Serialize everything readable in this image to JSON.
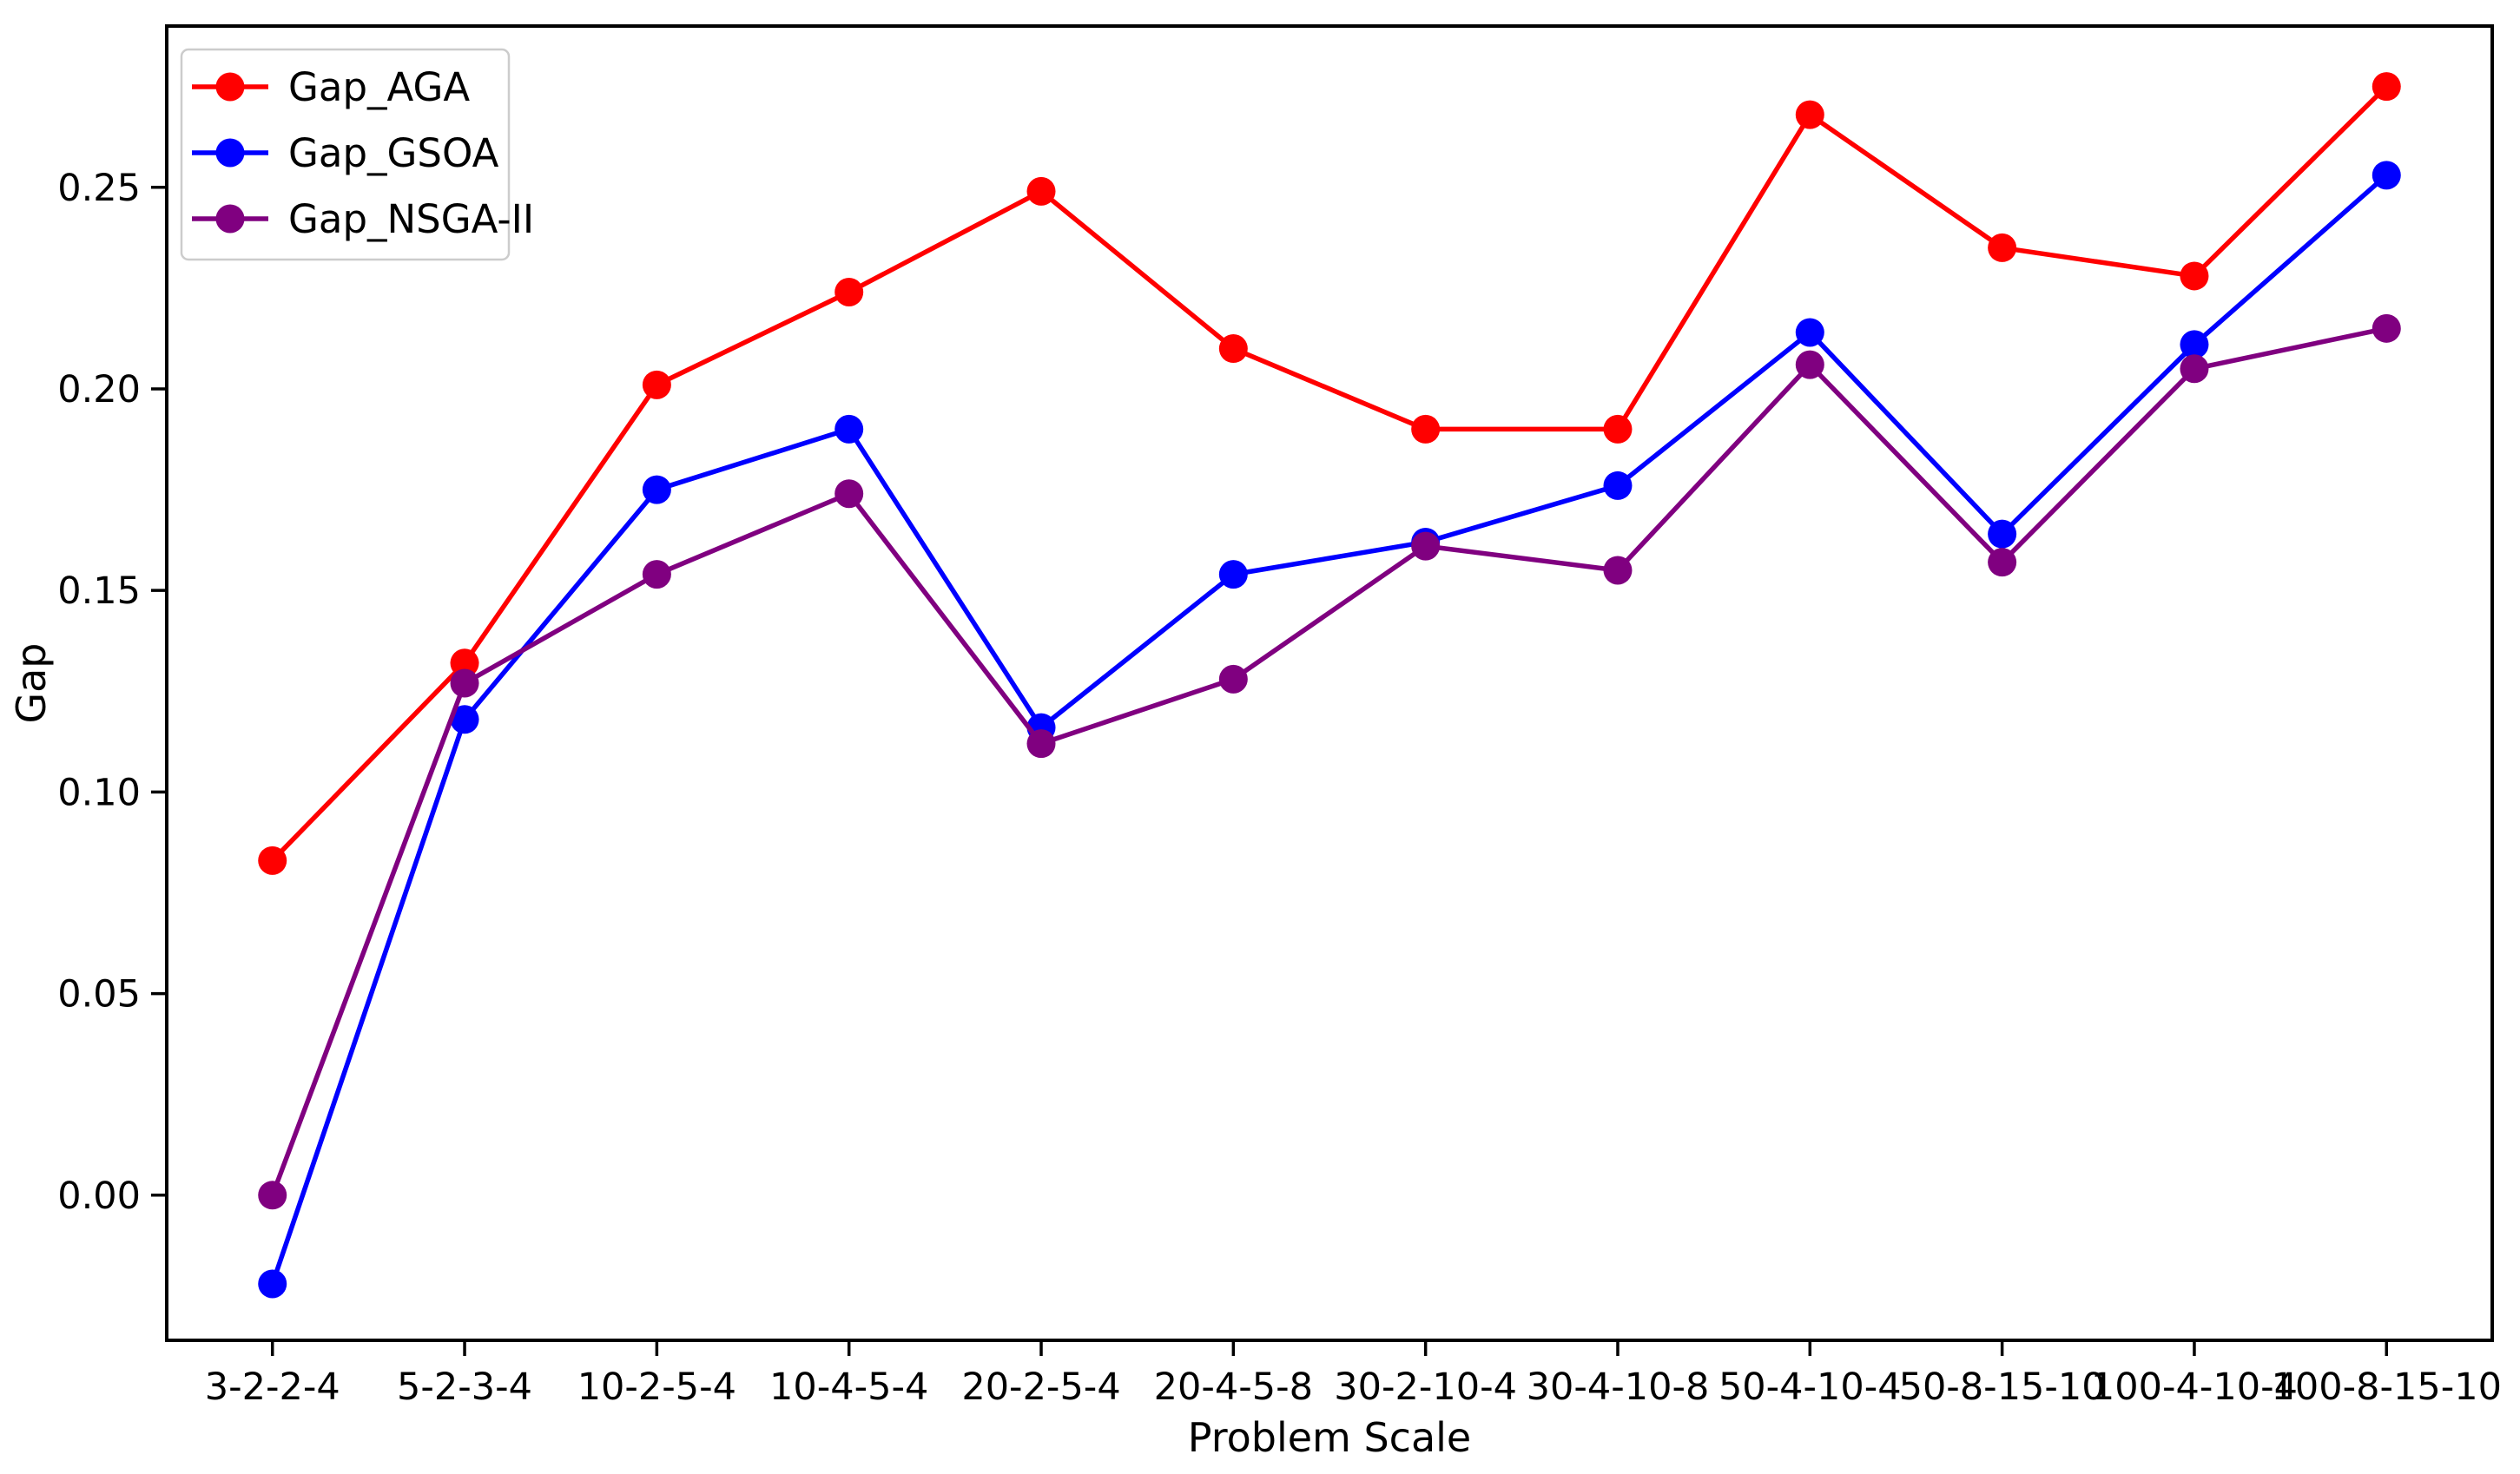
{
  "figure": {
    "background": "#ffffff",
    "axis_color": "#000000"
  },
  "chart_data": {
    "type": "line",
    "title": "",
    "xlabel": "Problem Scale",
    "ylabel": "Gap",
    "categories": [
      "3-2-2-4",
      "5-2-3-4",
      "10-2-5-4",
      "10-4-5-4",
      "20-2-5-4",
      "20-4-5-8",
      "30-2-10-4",
      "30-4-10-8",
      "50-4-10-4",
      "50-8-15-10",
      "100-4-10-4",
      "100-8-15-10"
    ],
    "series": [
      {
        "name": "Gap_AGA",
        "color": "#ff0000",
        "marker": "circle",
        "values": [
          0.083,
          0.132,
          0.201,
          0.224,
          0.249,
          0.21,
          0.19,
          0.19,
          0.268,
          0.235,
          0.228,
          0.275
        ]
      },
      {
        "name": "Gap_GSOA",
        "color": "#0000ff",
        "marker": "circle",
        "values": [
          -0.022,
          0.118,
          0.175,
          0.19,
          0.116,
          0.154,
          0.162,
          0.176,
          0.214,
          0.164,
          0.211,
          0.253
        ]
      },
      {
        "name": "Gap_NSGA-II",
        "color": "#800080",
        "marker": "circle",
        "values": [
          0.0,
          0.127,
          0.154,
          0.174,
          0.112,
          0.128,
          0.161,
          0.155,
          0.206,
          0.157,
          0.205,
          0.215
        ]
      }
    ],
    "yticks": [
      0.0,
      0.05,
      0.1,
      0.15,
      0.2,
      0.25
    ],
    "ytick_labels": [
      "0.00",
      "0.05",
      "0.10",
      "0.15",
      "0.20",
      "0.25"
    ],
    "ylim": [
      -0.036,
      0.29
    ],
    "x_margin": 0.55,
    "grid": false,
    "legend": {
      "position": "upper left",
      "entries": [
        "Gap_AGA",
        "Gap_GSOA",
        "Gap_NSGA-II"
      ]
    }
  }
}
